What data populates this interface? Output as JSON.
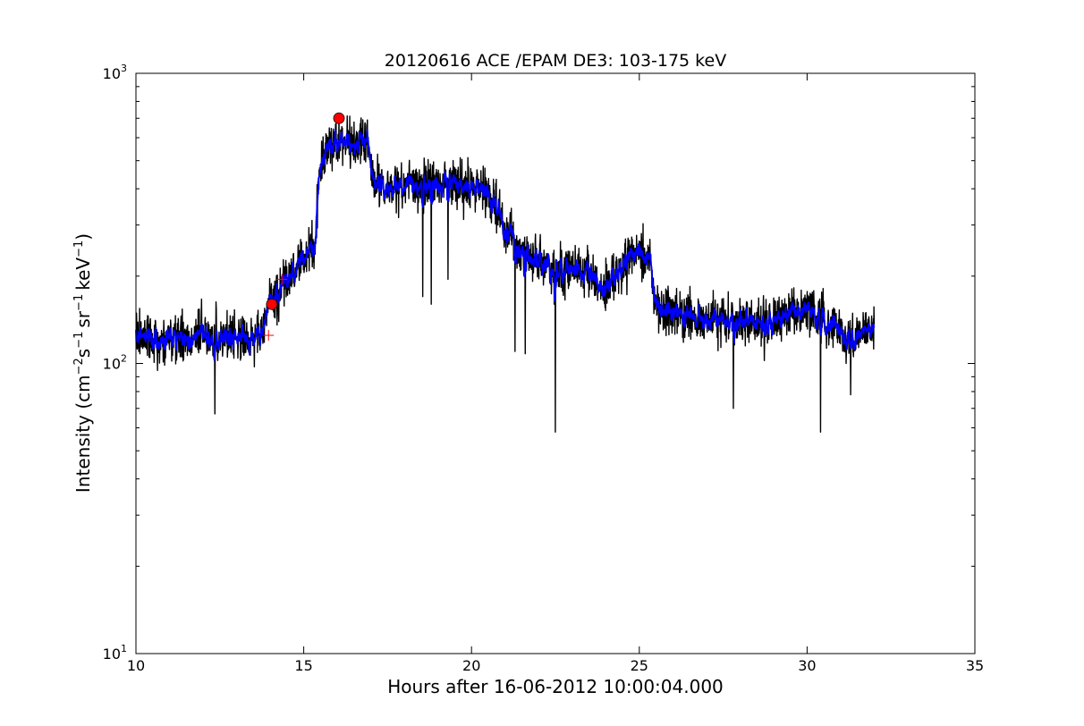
{
  "chart_data": {
    "type": "line",
    "title": "20120616 ACE /EPAM DE3: 103-175 keV",
    "xlabel": "Hours after 16-06-2012 10:00:04.000",
    "ylabel": {
      "prefix": "Intensity (cm",
      "exp1": "−2",
      "mid1": "s",
      "exp2": "−1",
      "mid2": "sr",
      "exp3": "−1",
      "mid3": "keV",
      "exp4": "−1",
      "suffix": ")"
    },
    "xlim": [
      10,
      35
    ],
    "ylim": [
      10,
      1000
    ],
    "yscale": "log",
    "grid": false,
    "x_ticks": [
      {
        "value": 10,
        "label": "10"
      },
      {
        "value": 15,
        "label": "15"
      },
      {
        "value": 20,
        "label": "20"
      },
      {
        "value": 25,
        "label": "25"
      },
      {
        "value": 30,
        "label": "30"
      },
      {
        "value": 35,
        "label": "35"
      }
    ],
    "y_ticks": [
      {
        "value": 10,
        "base": "10",
        "exp": "1"
      },
      {
        "value": 100,
        "base": "10",
        "exp": "2"
      },
      {
        "value": 1000,
        "base": "10",
        "exp": "3"
      }
    ],
    "series": [
      {
        "role": "raw",
        "color": "#000000",
        "x_range": [
          10.0,
          32.0
        ],
        "profile": [
          [
            10.0,
            125
          ],
          [
            10.5,
            118
          ],
          [
            11.0,
            122
          ],
          [
            11.5,
            120
          ],
          [
            12.0,
            125
          ],
          [
            12.5,
            120
          ],
          [
            13.0,
            122
          ],
          [
            13.5,
            125
          ],
          [
            13.8,
            128
          ],
          [
            14.0,
            165
          ],
          [
            14.3,
            180
          ],
          [
            14.6,
            195
          ],
          [
            15.0,
            245
          ],
          [
            15.35,
            250
          ],
          [
            15.45,
            460
          ],
          [
            15.7,
            540
          ],
          [
            16.0,
            580
          ],
          [
            16.5,
            570
          ],
          [
            16.9,
            600
          ],
          [
            17.05,
            420
          ],
          [
            17.5,
            405
          ],
          [
            18.0,
            410
          ],
          [
            18.5,
            415
          ],
          [
            19.0,
            415
          ],
          [
            19.5,
            420
          ],
          [
            20.0,
            415
          ],
          [
            20.5,
            375
          ],
          [
            20.9,
            310
          ],
          [
            21.2,
            265
          ],
          [
            21.5,
            245
          ],
          [
            22.0,
            225
          ],
          [
            22.5,
            205
          ],
          [
            23.0,
            215
          ],
          [
            23.5,
            205
          ],
          [
            24.0,
            178
          ],
          [
            24.4,
            210
          ],
          [
            24.8,
            240
          ],
          [
            25.3,
            238
          ],
          [
            25.5,
            158
          ],
          [
            26.0,
            148
          ],
          [
            27.0,
            142
          ],
          [
            28.0,
            138
          ],
          [
            29.0,
            140
          ],
          [
            29.5,
            152
          ],
          [
            30.0,
            155
          ],
          [
            30.5,
            140
          ],
          [
            31.0,
            128
          ],
          [
            31.5,
            120
          ],
          [
            32.0,
            135
          ]
        ],
        "spikes": [
          [
            18.55,
            170
          ],
          [
            18.8,
            160
          ],
          [
            19.3,
            195
          ],
          [
            21.3,
            110
          ],
          [
            21.6,
            108
          ],
          [
            22.5,
            58
          ],
          [
            27.8,
            70
          ],
          [
            30.4,
            58
          ],
          [
            31.3,
            78
          ],
          [
            12.35,
            67
          ]
        ]
      },
      {
        "role": "smoothed",
        "color": "#0000ff",
        "x_range": [
          10.0,
          32.0
        ]
      }
    ],
    "markers": [
      {
        "shape": "circle",
        "color": "#ff0000",
        "x": 16.05,
        "y": 700
      },
      {
        "shape": "circle",
        "color": "#ff0000",
        "x": 14.05,
        "y": 160
      },
      {
        "shape": "plus",
        "color": "#ff0000",
        "x": 13.95,
        "y": 125
      },
      {
        "shape": "plus",
        "color": "#ff0000",
        "x": 14.35,
        "y": 195
      }
    ]
  }
}
